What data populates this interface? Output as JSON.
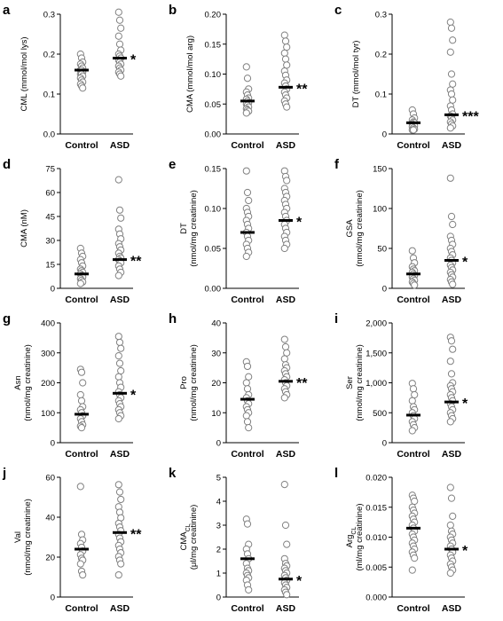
{
  "colors": {
    "axis": "#000000",
    "marker_stroke": "#808080",
    "marker_fill": "#ffffff",
    "median": "#000000",
    "background": "#ffffff"
  },
  "chart_data": [
    {
      "type": "scatter",
      "panel": "a",
      "ylabel_lines": [
        "CML (mmol/mol lys)"
      ],
      "ylim": [
        0,
        0.3
      ],
      "yticks": [
        "0.0",
        "0.1",
        "0.2",
        "0.3"
      ],
      "categories": [
        "Control",
        "ASD"
      ],
      "grid": false,
      "series": [
        {
          "category": "Control",
          "values": [
            0.2,
            0.19,
            0.18,
            0.175,
            0.17,
            0.165,
            0.16,
            0.16,
            0.155,
            0.15,
            0.15,
            0.145,
            0.14,
            0.135,
            0.13,
            0.125,
            0.12,
            0.115
          ],
          "median": 0.16
        },
        {
          "category": "ASD",
          "values": [
            0.305,
            0.285,
            0.265,
            0.245,
            0.225,
            0.21,
            0.2,
            0.195,
            0.19,
            0.185,
            0.18,
            0.175,
            0.17,
            0.165,
            0.16,
            0.155,
            0.15,
            0.145
          ],
          "median": 0.19,
          "significance": "*"
        }
      ]
    },
    {
      "type": "scatter",
      "panel": "b",
      "ylabel_lines": [
        "CMA (mmol/mol arg)"
      ],
      "ylim": [
        0,
        0.2
      ],
      "yticks": [
        "0.00",
        "0.05",
        "0.10",
        "0.15",
        "0.20"
      ],
      "categories": [
        "Control",
        "ASD"
      ],
      "grid": false,
      "series": [
        {
          "category": "Control",
          "values": [
            0.112,
            0.093,
            0.075,
            0.07,
            0.065,
            0.06,
            0.058,
            0.055,
            0.052,
            0.05,
            0.048,
            0.045,
            0.042,
            0.04,
            0.038,
            0.035
          ],
          "median": 0.055
        },
        {
          "category": "ASD",
          "values": [
            0.165,
            0.155,
            0.145,
            0.135,
            0.125,
            0.115,
            0.105,
            0.098,
            0.09,
            0.085,
            0.08,
            0.075,
            0.07,
            0.065,
            0.06,
            0.055,
            0.05,
            0.045
          ],
          "median": 0.078,
          "significance": "**"
        }
      ]
    },
    {
      "type": "scatter",
      "panel": "c",
      "ylabel_lines": [
        "DT (mmol/mol tyr)"
      ],
      "ylim": [
        0,
        0.3
      ],
      "yticks": [
        "0",
        "0.1",
        "0.2",
        "0.3"
      ],
      "categories": [
        "Control",
        "ASD"
      ],
      "grid": false,
      "series": [
        {
          "category": "Control",
          "values": [
            0.06,
            0.05,
            0.04,
            0.035,
            0.03,
            0.028,
            0.025,
            0.022,
            0.02,
            0.018,
            0.015,
            0.012,
            0.01,
            0.01
          ],
          "median": 0.028
        },
        {
          "category": "ASD",
          "values": [
            0.28,
            0.265,
            0.235,
            0.205,
            0.15,
            0.125,
            0.11,
            0.1,
            0.085,
            0.07,
            0.06,
            0.05,
            0.045,
            0.04,
            0.035,
            0.03,
            0.025,
            0.02,
            0.015
          ],
          "median": 0.048,
          "significance": "***"
        }
      ]
    },
    {
      "type": "scatter",
      "panel": "d",
      "ylabel_lines": [
        "CMA (nM)"
      ],
      "ylim": [
        0,
        75
      ],
      "yticks": [
        "0",
        "15",
        "30",
        "45",
        "60",
        "75"
      ],
      "categories": [
        "Control",
        "ASD"
      ],
      "grid": false,
      "series": [
        {
          "category": "Control",
          "values": [
            25,
            22,
            20,
            18,
            16,
            14,
            12,
            11,
            10,
            9,
            8,
            7,
            6,
            5,
            4,
            3
          ],
          "median": 9
        },
        {
          "category": "ASD",
          "values": [
            68,
            49,
            44,
            37,
            34,
            31,
            28,
            26,
            24,
            22,
            20,
            19,
            18,
            17,
            16,
            14,
            12,
            10,
            8
          ],
          "median": 18,
          "significance": "**"
        }
      ]
    },
    {
      "type": "scatter",
      "panel": "e",
      "ylabel_lines": [
        "DT",
        "(nmol/mg creatinine)"
      ],
      "ylim": [
        0,
        0.15
      ],
      "yticks": [
        "0.00",
        "0.05",
        "0.10",
        "0.15"
      ],
      "categories": [
        "Control",
        "ASD"
      ],
      "grid": false,
      "series": [
        {
          "category": "Control",
          "values": [
            0.147,
            0.12,
            0.11,
            0.1,
            0.095,
            0.09,
            0.085,
            0.08,
            0.075,
            0.07,
            0.065,
            0.06,
            0.055,
            0.05,
            0.045,
            0.04
          ],
          "median": 0.07
        },
        {
          "category": "ASD",
          "values": [
            0.147,
            0.14,
            0.135,
            0.125,
            0.12,
            0.115,
            0.11,
            0.105,
            0.1,
            0.095,
            0.09,
            0.085,
            0.08,
            0.075,
            0.07,
            0.065,
            0.06,
            0.055,
            0.05
          ],
          "median": 0.085,
          "significance": "*"
        }
      ]
    },
    {
      "type": "scatter",
      "panel": "f",
      "ylabel_lines": [
        "GSA",
        "(nmol/mg creatinine)"
      ],
      "ylim": [
        0,
        150
      ],
      "yticks": [
        "0",
        "50",
        "100",
        "150"
      ],
      "categories": [
        "Control",
        "ASD"
      ],
      "grid": false,
      "series": [
        {
          "category": "Control",
          "values": [
            47,
            38,
            32,
            27,
            24,
            22,
            20,
            18,
            16,
            14,
            12,
            10,
            8,
            6,
            4
          ],
          "median": 18
        },
        {
          "category": "ASD",
          "values": [
            138,
            90,
            80,
            65,
            60,
            55,
            50,
            46,
            42,
            38,
            35,
            32,
            29,
            26,
            23,
            20,
            17,
            14,
            11,
            8,
            5
          ],
          "median": 35,
          "significance": "*"
        }
      ]
    },
    {
      "type": "scatter",
      "panel": "g",
      "ylabel_lines": [
        "Asn",
        "(nmol/mg creatinine)"
      ],
      "ylim": [
        0,
        400
      ],
      "yticks": [
        "0",
        "100",
        "200",
        "300",
        "400"
      ],
      "categories": [
        "Control",
        "ASD"
      ],
      "grid": false,
      "series": [
        {
          "category": "Control",
          "values": [
            245,
            235,
            200,
            160,
            140,
            120,
            110,
            100,
            90,
            80,
            70,
            60,
            55,
            50
          ],
          "median": 95
        },
        {
          "category": "ASD",
          "values": [
            355,
            335,
            315,
            290,
            265,
            240,
            220,
            200,
            185,
            170,
            160,
            150,
            140,
            130,
            120,
            110,
            100,
            90,
            80
          ],
          "median": 165,
          "significance": "*"
        }
      ]
    },
    {
      "type": "scatter",
      "panel": "h",
      "ylabel_lines": [
        "Pro",
        "(nmol/mg creatinine)"
      ],
      "ylim": [
        0,
        40
      ],
      "yticks": [
        "0",
        "10",
        "20",
        "30",
        "40"
      ],
      "categories": [
        "Control",
        "ASD"
      ],
      "grid": false,
      "series": [
        {
          "category": "Control",
          "values": [
            27,
            25.5,
            22,
            20,
            18,
            16,
            15,
            14,
            13,
            12,
            11,
            10,
            9,
            7,
            5
          ],
          "median": 14.5
        },
        {
          "category": "ASD",
          "values": [
            34.5,
            32,
            30,
            28,
            26,
            25,
            24,
            23,
            22,
            21,
            20,
            19,
            18,
            17,
            16,
            15
          ],
          "median": 20.5,
          "significance": "**"
        }
      ]
    },
    {
      "type": "scatter",
      "panel": "i",
      "ylabel_lines": [
        "Ser",
        "(nmol/mg creatinine)"
      ],
      "ylim": [
        0,
        2000
      ],
      "yticks": [
        "0",
        "500",
        "1,000",
        "1,500",
        "2,000"
      ],
      "categories": [
        "Control",
        "ASD"
      ],
      "grid": false,
      "series": [
        {
          "category": "Control",
          "values": [
            990,
            900,
            800,
            700,
            600,
            550,
            500,
            450,
            400,
            350,
            300,
            250,
            200
          ],
          "median": 460
        },
        {
          "category": "ASD",
          "values": [
            1760,
            1700,
            1560,
            1360,
            1150,
            1000,
            950,
            900,
            850,
            800,
            750,
            700,
            650,
            600,
            550,
            500,
            450,
            400,
            350
          ],
          "median": 680,
          "significance": "*"
        }
      ]
    },
    {
      "type": "scatter",
      "panel": "j",
      "ylabel_lines": [
        "Val",
        "(nmol/mg creatinine)"
      ],
      "ylim": [
        0,
        65
      ],
      "yticks": [
        "0",
        "20",
        "40",
        "60"
      ],
      "categories": [
        "Control",
        "ASD"
      ],
      "grid": false,
      "series": [
        {
          "category": "Control",
          "values": [
            60,
            34,
            31,
            29,
            27,
            25,
            23,
            21,
            20,
            18,
            14,
            12
          ],
          "median": 26
        },
        {
          "category": "ASD",
          "values": [
            61,
            57,
            53,
            49,
            46,
            43,
            40,
            38,
            36,
            34,
            32,
            30,
            28,
            26,
            24,
            22,
            20,
            18,
            12
          ],
          "median": 35,
          "significance": "**"
        }
      ]
    },
    {
      "type": "scatter",
      "panel": "k",
      "ylabel_lines": [
        "CMA",
        "(μl/mg creatinine)"
      ],
      "ylabel_sub": "CL",
      "ylim": [
        0,
        5
      ],
      "yticks": [
        "0",
        "1",
        "2",
        "3",
        "4",
        "5"
      ],
      "categories": [
        "Control",
        "ASD"
      ],
      "grid": false,
      "series": [
        {
          "category": "Control",
          "values": [
            3.25,
            3.05,
            2.2,
            2.0,
            1.8,
            1.6,
            1.4,
            1.2,
            1.1,
            1.0,
            0.9,
            0.8,
            0.7,
            0.5,
            0.3
          ],
          "median": 1.6
        },
        {
          "category": "ASD",
          "values": [
            4.7,
            3.0,
            2.2,
            1.6,
            1.4,
            1.3,
            1.2,
            1.1,
            1.0,
            0.9,
            0.8,
            0.7,
            0.6,
            0.5,
            0.4,
            0.3,
            0.2,
            0.1
          ],
          "median": 0.75,
          "significance": "*"
        }
      ]
    },
    {
      "type": "scatter",
      "panel": "l",
      "ylabel_lines": [
        "Arg",
        "(ml/mg creatinine)"
      ],
      "ylabel_sub": "CL",
      "ylim": [
        0,
        0.02
      ],
      "yticks": [
        "0.000",
        "0.005",
        "0.010",
        "0.015",
        "0.020"
      ],
      "categories": [
        "Control",
        "ASD"
      ],
      "grid": false,
      "series": [
        {
          "category": "Control",
          "values": [
            0.017,
            0.0165,
            0.016,
            0.015,
            0.0145,
            0.014,
            0.0135,
            0.013,
            0.0125,
            0.012,
            0.0115,
            0.011,
            0.0105,
            0.01,
            0.0095,
            0.009,
            0.0085,
            0.008,
            0.0075,
            0.007,
            0.0065,
            0.0045
          ],
          "median": 0.0115
        },
        {
          "category": "ASD",
          "values": [
            0.0183,
            0.0165,
            0.0135,
            0.012,
            0.011,
            0.0105,
            0.01,
            0.0095,
            0.009,
            0.0085,
            0.008,
            0.0075,
            0.007,
            0.0065,
            0.006,
            0.0055,
            0.005,
            0.0045,
            0.004
          ],
          "median": 0.008,
          "significance": "*"
        }
      ]
    }
  ]
}
